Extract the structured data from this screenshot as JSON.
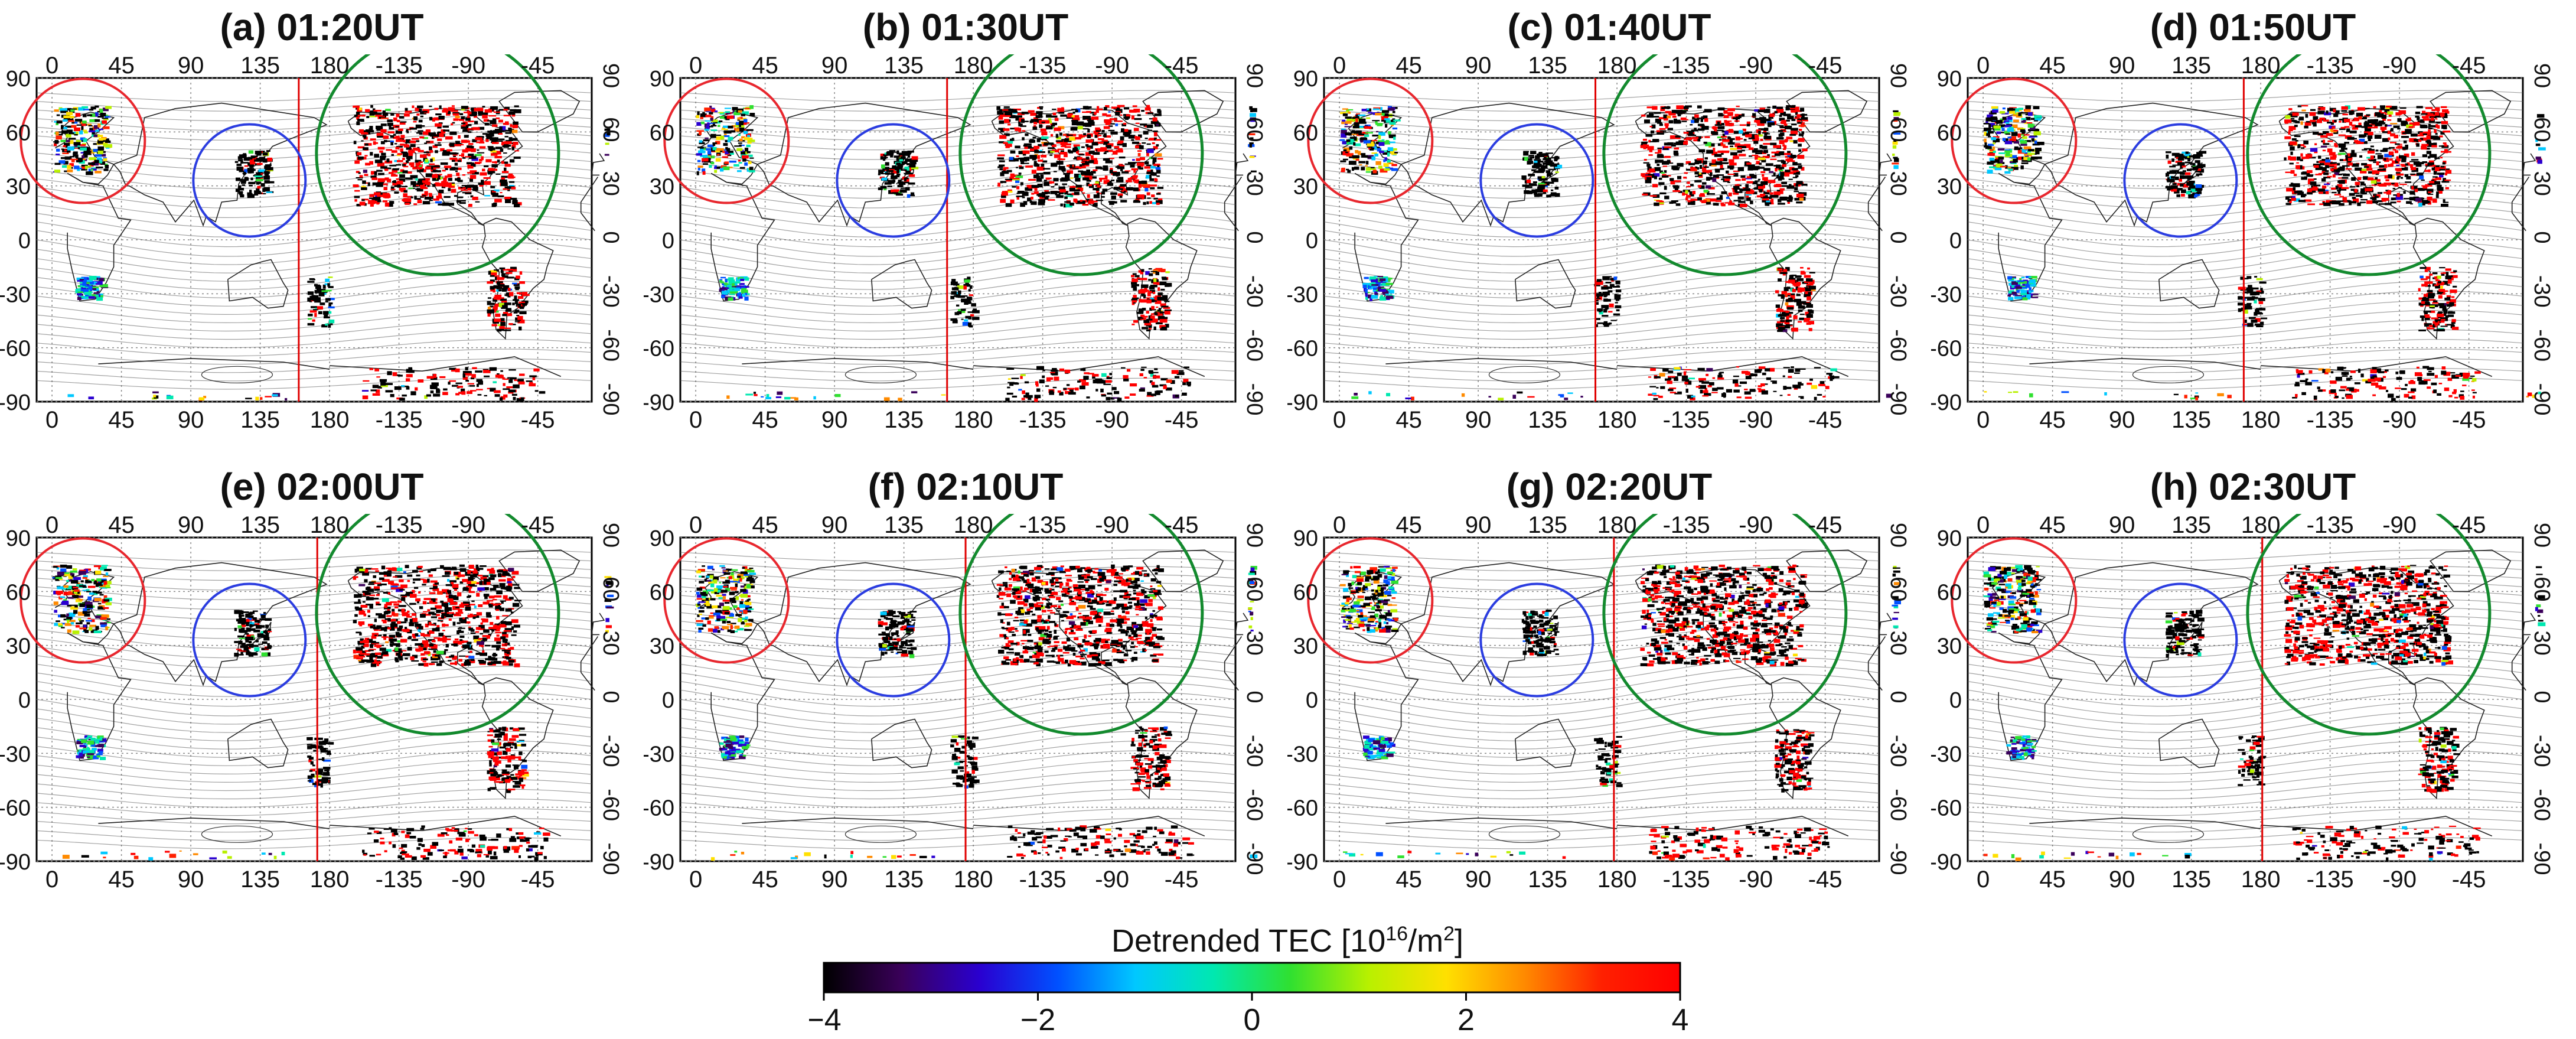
{
  "panels": [
    {
      "title": "(a) 01:20UT",
      "longitude_ticks": [
        "0",
        "45",
        "90",
        "135",
        "180",
        "-135",
        "-90",
        "-45"
      ],
      "latitude_ticks": [
        "90",
        "60",
        "30",
        "0",
        "-30",
        "-60",
        "-90"
      ],
      "circles": [
        "red",
        "blue",
        "green"
      ]
    },
    {
      "title": "(b) 01:30UT",
      "longitude_ticks": [
        "0",
        "45",
        "90",
        "135",
        "180",
        "-135",
        "-90",
        "-45"
      ],
      "latitude_ticks": [
        "90",
        "60",
        "30",
        "0",
        "-30",
        "-60",
        "-90"
      ],
      "circles": [
        "red",
        "blue",
        "green"
      ]
    },
    {
      "title": "(c) 01:40UT",
      "longitude_ticks": [
        "0",
        "45",
        "90",
        "135",
        "180",
        "-135",
        "-90",
        "-45"
      ],
      "latitude_ticks": [
        "90",
        "60",
        "30",
        "0",
        "-30",
        "-60",
        "-90"
      ],
      "circles": [
        "red",
        "blue",
        "green"
      ]
    },
    {
      "title": "(d) 01:50UT",
      "longitude_ticks": [
        "0",
        "45",
        "90",
        "135",
        "180",
        "-135",
        "-90",
        "-45"
      ],
      "latitude_ticks": [
        "90",
        "60",
        "30",
        "0",
        "-30",
        "-60",
        "-90"
      ],
      "circles": [
        "red",
        "blue",
        "green"
      ]
    },
    {
      "title": "(e) 02:00UT",
      "longitude_ticks": [
        "0",
        "45",
        "90",
        "135",
        "180",
        "-135",
        "-90",
        "-45"
      ],
      "latitude_ticks": [
        "90",
        "60",
        "30",
        "0",
        "-30",
        "-60",
        "-90"
      ],
      "circles": [
        "red",
        "blue",
        "green"
      ]
    },
    {
      "title": "(f) 02:10UT",
      "longitude_ticks": [
        "0",
        "45",
        "90",
        "135",
        "180",
        "-135",
        "-90",
        "-45"
      ],
      "latitude_ticks": [
        "90",
        "60",
        "30",
        "0",
        "-30",
        "-60",
        "-90"
      ],
      "circles": [
        "red",
        "blue",
        "green"
      ]
    },
    {
      "title": "(g) 02:20UT",
      "longitude_ticks": [
        "0",
        "45",
        "90",
        "135",
        "180",
        "-135",
        "-90",
        "-45"
      ],
      "latitude_ticks": [
        "90",
        "60",
        "30",
        "0",
        "-30",
        "-60",
        "-90"
      ],
      "circles": [
        "red",
        "blue",
        "green"
      ]
    },
    {
      "title": "(h) 02:30UT",
      "longitude_ticks": [
        "0",
        "45",
        "90",
        "135",
        "180",
        "-135",
        "-90",
        "-45"
      ],
      "latitude_ticks": [
        "90",
        "60",
        "30",
        "0",
        "-30",
        "-60",
        "-90"
      ],
      "circles": [
        "red",
        "blue",
        "green"
      ]
    }
  ],
  "colorbar": {
    "title_text": "Detrended TEC  [10",
    "title_superscript": "16",
    "title_unit": "/m",
    "title_unit_superscript": "2",
    "title_close": "]",
    "ticks": [
      "−4",
      "−2",
      "0",
      "2",
      "4"
    ],
    "tick_values": [
      -4,
      -2,
      0,
      2,
      4
    ],
    "range": [
      -4,
      4
    ],
    "colors": [
      "#000000",
      "#3a005a",
      "#2a00d0",
      "#0050ff",
      "#00c8ff",
      "#00e8b0",
      "#30e030",
      "#b8f000",
      "#ffe000",
      "#ff8a00",
      "#ff2000",
      "#ff0000"
    ]
  },
  "colors": {
    "red_circle": "#e8272e",
    "blue_circle": "#2b3de0",
    "green_circle": "#138a2e",
    "terminator": "#e00000",
    "coastline": "#222222",
    "gridline": "#888888"
  }
}
